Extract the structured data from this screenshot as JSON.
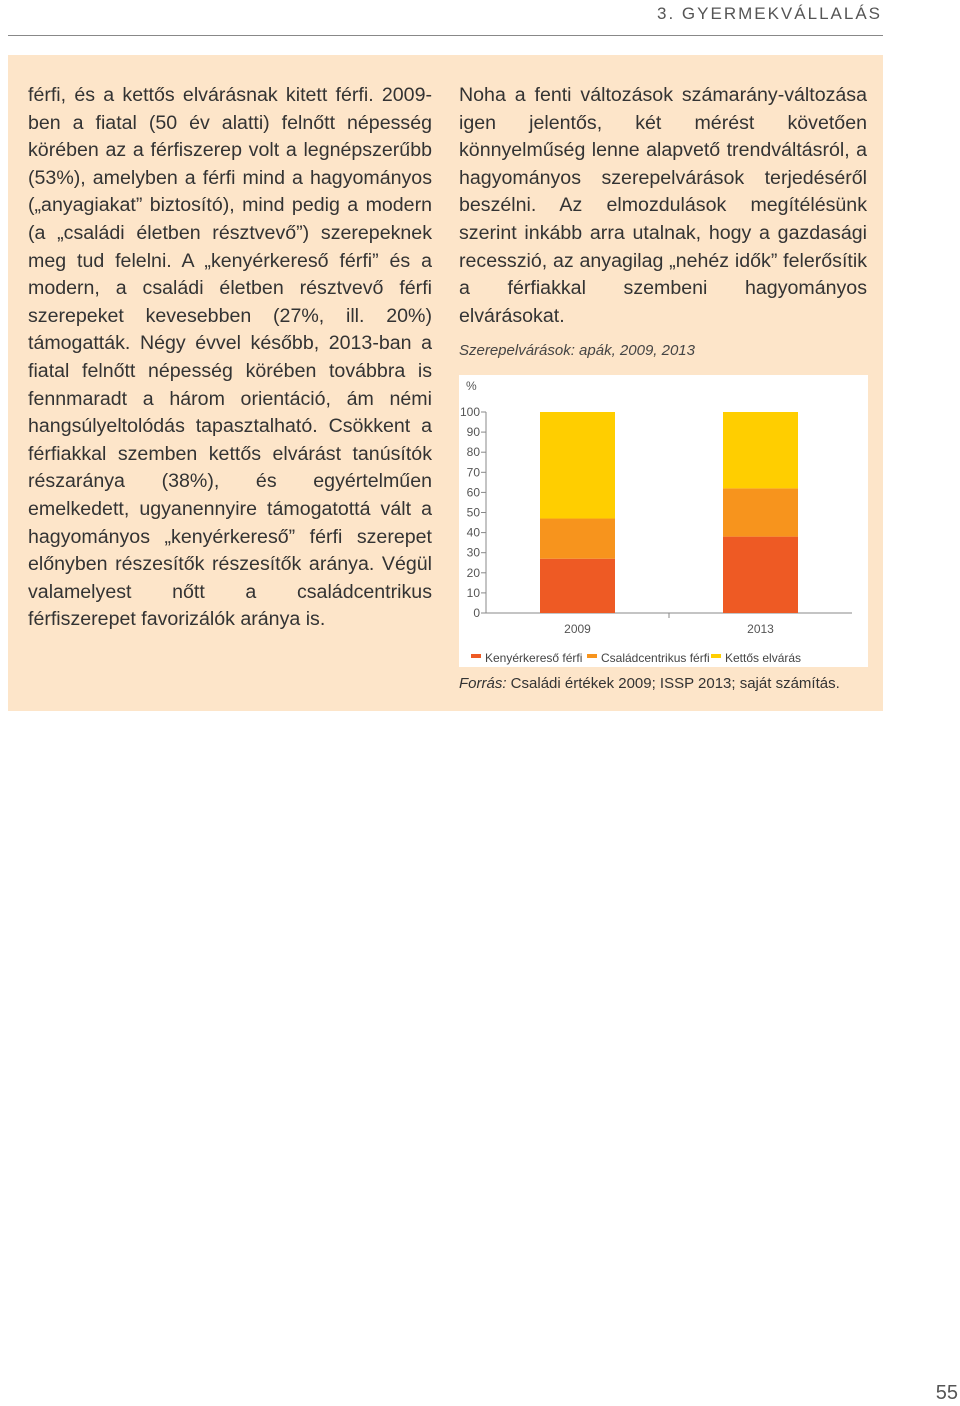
{
  "header": {
    "section_title": "3. GYERMEKVÁLLALÁS"
  },
  "left_column": {
    "text": "férfi, és a kettős elvárásnak kitett férfi. 2009-ben a fiatal (50 év alatti) felnőtt népesség körében az a férfiszerep volt a legnépszerűbb (53%), amelyben a férfi mind a hagyományos („anyagiakat” biztosító), mind pedig a modern (a „családi életben résztvevő”) szerepeknek meg tud felelni. A „kenyérkereső férfi” és a modern, a családi életben résztvevő férfi szerepeket kevesebben (27%, ill. 20%) támogatták. Négy évvel később, 2013-ban a fiatal felnőtt népesség körében továbbra is fennmaradt a három orientáció, ám némi hangsúlyeltolódás tapasztalható. Csökkent a férfiakkal szemben kettős elvárást tanúsítók részaránya (38%), és egyértelműen emelkedett, ugyanennyire támogatottá vált a hagyományos „kenyérkereső” férfi szerepet előnyben részesítők részesítők aránya. Végül valamelyest nőtt a családcentrikus férfiszerepet favorizálók aránya is."
  },
  "right_column": {
    "text": "Noha a fenti változások számarány-változása igen jelentős, két mérést követően könnyelműség lenne alapvető trendváltásról, a hagyományos szerepelvárások terjedéséről beszélni. Az elmozdulások megítélésünk szerint inkább arra utalnak, hogy a gazdasági recesszió, az anyagilag „nehéz idők” felerősítik a férfiakkal szembeni hagyományos elvárásokat."
  },
  "chart_caption": "Szerepelvárások: apák, 2009, 2013",
  "chart_data": {
    "type": "bar",
    "stacked": true,
    "title": "Szerepelvárások: apák, 2009, 2013",
    "ylabel": "%",
    "ylim": [
      0,
      100
    ],
    "yticks": [
      "0",
      "10",
      "20",
      "30",
      "40",
      "50",
      "60",
      "70",
      "80",
      "90",
      "100"
    ],
    "categories": [
      "2009",
      "2013"
    ],
    "series": [
      {
        "name": "Kenyérkereső férfi",
        "values": [
          27,
          38
        ],
        "color": "#ee5a24"
      },
      {
        "name": "Családcentrikus férfi",
        "values": [
          20,
          24
        ],
        "color": "#f7941d"
      },
      {
        "name": "Kettős elvárás",
        "values": [
          53,
          38
        ],
        "color": "#ffce00"
      }
    ],
    "legend_position": "bottom",
    "grid": false
  },
  "source": {
    "label": "Forrás:",
    "text": " Családi értékek 2009; ISSP 2013; saját számítás."
  },
  "page_number": "55"
}
